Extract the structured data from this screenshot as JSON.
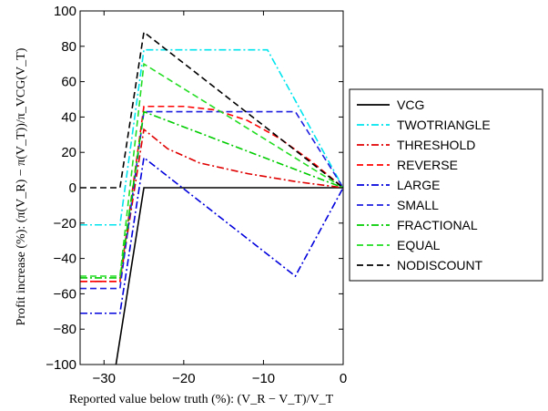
{
  "chart_data": {
    "type": "line",
    "xlabel": "Reported value below truth (%): (V_R − V_T)/V_T",
    "ylabel": "Profit increase (%): (π(V_R) − π(V_T))/π_VCG(V_T)",
    "xlim": [
      -33,
      0
    ],
    "ylim": [
      -100,
      100
    ],
    "xticks": [
      -30,
      -20,
      -10,
      0
    ],
    "yticks": [
      -100,
      -80,
      -60,
      -40,
      -20,
      0,
      20,
      40,
      60,
      80,
      100
    ],
    "grid": false,
    "legend_position": "right",
    "series": [
      {
        "name": "VCG",
        "color": "#000000",
        "dash": "solid",
        "x": [
          -28.5,
          -25,
          0
        ],
        "y": [
          -100,
          0,
          0
        ]
      },
      {
        "name": "TWOTRIANGLE",
        "color": "#00e5ee",
        "dash": "dashdot",
        "x": [
          -33,
          -28,
          -28,
          -25,
          -9.5,
          0
        ],
        "y": [
          -21,
          -21,
          -21,
          78,
          78,
          0
        ]
      },
      {
        "name": "THRESHOLD",
        "color": "#e00000",
        "dash": "dashdot",
        "x": [
          -33,
          -28,
          -25,
          -22,
          -18,
          -12,
          -6,
          0
        ],
        "y": [
          -53,
          -53,
          33,
          22,
          14,
          8,
          3.5,
          0
        ]
      },
      {
        "name": "REVERSE",
        "color": "#ff0000",
        "dash": "dashed",
        "x": [
          -33,
          -28,
          -25,
          -20,
          -16,
          -12,
          -8,
          -4,
          0
        ],
        "y": [
          -53,
          -53,
          46,
          46,
          44,
          38,
          28,
          15,
          0
        ]
      },
      {
        "name": "LARGE",
        "color": "#0000dd",
        "dash": "dashdot",
        "x": [
          -33,
          -28,
          -25,
          -6,
          0
        ],
        "y": [
          -71,
          -71,
          17,
          -50,
          0
        ]
      },
      {
        "name": "SMALL",
        "color": "#1e1ee0",
        "dash": "dashed",
        "x": [
          -33,
          -28,
          -25,
          -6,
          0
        ],
        "y": [
          -57,
          -57,
          43,
          43,
          0
        ]
      },
      {
        "name": "FRACTIONAL",
        "color": "#00cc00",
        "dash": "dashdot",
        "x": [
          -33,
          -28,
          -25,
          0
        ],
        "y": [
          -51,
          -51,
          43,
          0
        ]
      },
      {
        "name": "EQUAL",
        "color": "#22dd22",
        "dash": "dashed",
        "x": [
          -33,
          -28,
          -25,
          0
        ],
        "y": [
          -50,
          -50,
          70,
          0
        ]
      },
      {
        "name": "NODISCOUNT",
        "color": "#000000",
        "dash": "dashed",
        "x": [
          -33,
          -28,
          -25,
          0
        ],
        "y": [
          0,
          0,
          88,
          0
        ]
      }
    ]
  }
}
